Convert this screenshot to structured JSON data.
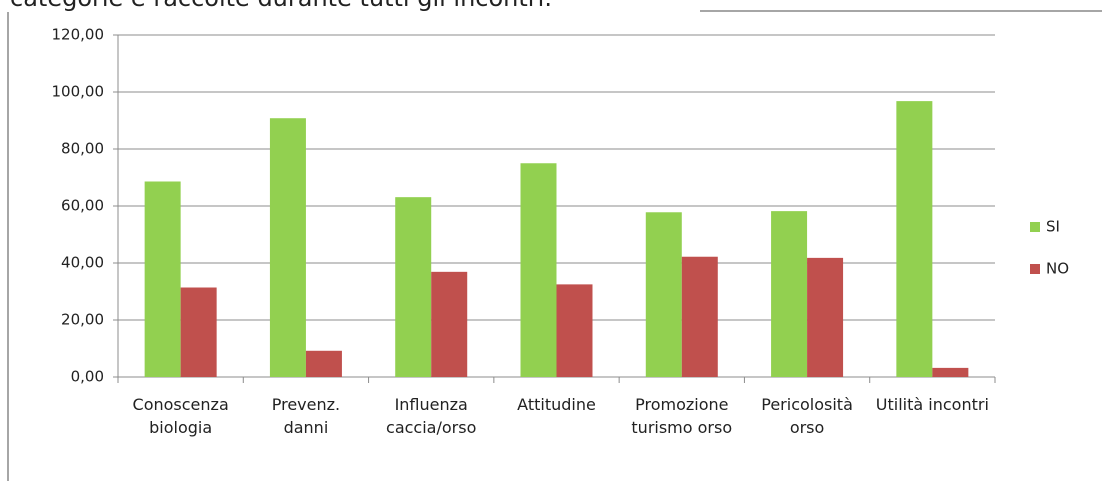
{
  "chart_data": {
    "type": "bar",
    "title": "categorie e raccolte durante tutti gli incontri.",
    "categories": [
      "Conoscenza biologia",
      "Prevenz. danni",
      "Influenza caccia/orso",
      "Attitudine",
      "Promozione turismo orso",
      "Pericolosità orso",
      "Utilità incontri"
    ],
    "series": [
      {
        "name": "SI",
        "color": "#92d050",
        "values": [
          68.6,
          90.8,
          63.1,
          75.0,
          57.8,
          58.2,
          96.8
        ]
      },
      {
        "name": "NO",
        "color": "#c0504d",
        "values": [
          31.4,
          9.2,
          36.9,
          32.5,
          42.2,
          41.8,
          3.2
        ]
      }
    ],
    "ylim": [
      0,
      120
    ],
    "yticks": [
      {
        "value": 0,
        "label": "0,00"
      },
      {
        "value": 20,
        "label": "20,00"
      },
      {
        "value": 40,
        "label": "40,00"
      },
      {
        "value": 60,
        "label": "60,00"
      },
      {
        "value": 80,
        "label": "80,00"
      },
      {
        "value": 100,
        "label": "100,00"
      },
      {
        "value": 120,
        "label": "120,00"
      }
    ],
    "grid": true,
    "legend": "right"
  }
}
